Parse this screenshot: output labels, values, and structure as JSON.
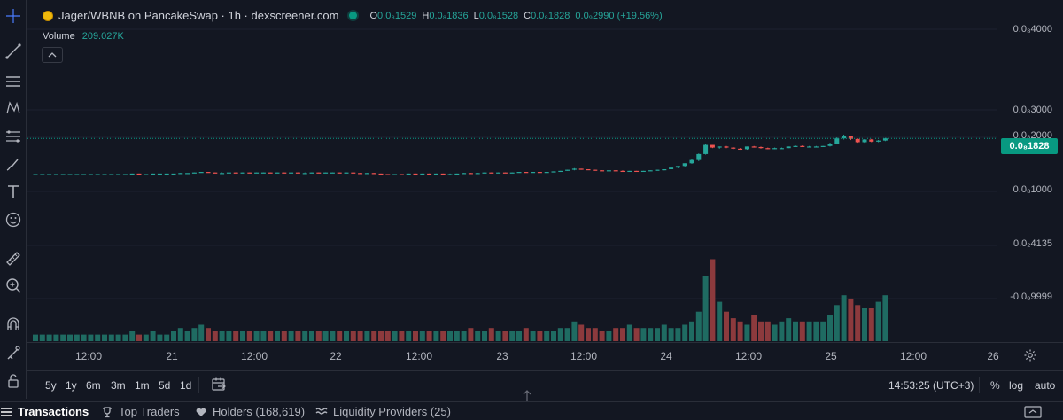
{
  "legend": {
    "title": "Jager/WBNB on PancakeSwap · 1h · dexscreener.com",
    "ohlc": [
      {
        "k": "O",
        "v": "0.0₈1529"
      },
      {
        "k": "H",
        "v": "0.0₈1836"
      },
      {
        "k": "L",
        "v": "0.0₈1528"
      },
      {
        "k": "C",
        "v": "0.0₈1828"
      }
    ],
    "change": "0.0₉2990 (+19.56%)",
    "volume_label": "Volume",
    "volume_value": "209.027K"
  },
  "price_axis": {
    "ticks": [
      {
        "label": "0.0₈4000",
        "top": 27
      },
      {
        "label": "0.0₈3000",
        "top": 118
      },
      {
        "label": "0.0₈2000",
        "top": 147
      },
      {
        "label": "0.0₈1000",
        "top": 208
      },
      {
        "label": "0.0₂4135",
        "top": 269
      },
      {
        "label": "-0.0₉9999",
        "top": 329
      }
    ],
    "current": "0.0₈1828"
  },
  "time_axis": [
    "12:00",
    "21",
    "12:00",
    "22",
    "12:00",
    "23",
    "12:00",
    "24",
    "12:00",
    "25",
    "12:00",
    "26"
  ],
  "timeframes": [
    "5y",
    "1y",
    "6m",
    "3m",
    "1m",
    "5d",
    "1d"
  ],
  "clock": "14:53:25 (UTC+3)",
  "options": [
    "%",
    "log",
    "auto"
  ],
  "tabs": [
    {
      "label": "Transactions",
      "icon": "list-icon"
    },
    {
      "label": "Top Traders",
      "icon": "trophy-icon"
    },
    {
      "label": "Holders (168,619)",
      "icon": "heart-icon"
    },
    {
      "label": "Liquidity Providers (25)",
      "icon": "waves-icon"
    }
  ],
  "colors": {
    "up": "#26a69a",
    "down": "#ef5350",
    "vol_up": "#1f6b62",
    "vol_down": "#8c3a3d",
    "price_line": "#089981"
  },
  "chart_data": {
    "type": "candlestick",
    "candles": [
      [
        1.32,
        1.32,
        1.32,
        1.32
      ],
      [
        1.32,
        1.32,
        1.32,
        1.32
      ],
      [
        1.32,
        1.32,
        1.32,
        1.32
      ],
      [
        1.32,
        1.32,
        1.32,
        1.32
      ],
      [
        1.32,
        1.32,
        1.32,
        1.32
      ],
      [
        1.32,
        1.32,
        1.32,
        1.32
      ],
      [
        1.32,
        1.32,
        1.32,
        1.32
      ],
      [
        1.32,
        1.32,
        1.32,
        1.32
      ],
      [
        1.32,
        1.32,
        1.32,
        1.32
      ],
      [
        1.32,
        1.32,
        1.32,
        1.32
      ],
      [
        1.32,
        1.32,
        1.32,
        1.32
      ],
      [
        1.32,
        1.32,
        1.32,
        1.32
      ],
      [
        1.32,
        1.32,
        1.32,
        1.32
      ],
      [
        1.32,
        1.32,
        1.32,
        1.32
      ],
      [
        1.32,
        1.33,
        1.32,
        1.33
      ],
      [
        1.33,
        1.33,
        1.32,
        1.32
      ],
      [
        1.32,
        1.32,
        1.32,
        1.32
      ],
      [
        1.32,
        1.33,
        1.32,
        1.33
      ],
      [
        1.33,
        1.33,
        1.33,
        1.33
      ],
      [
        1.33,
        1.33,
        1.32,
        1.33
      ],
      [
        1.33,
        1.33,
        1.33,
        1.33
      ],
      [
        1.33,
        1.34,
        1.33,
        1.34
      ],
      [
        1.34,
        1.34,
        1.34,
        1.34
      ],
      [
        1.34,
        1.35,
        1.34,
        1.35
      ],
      [
        1.35,
        1.36,
        1.35,
        1.36
      ],
      [
        1.36,
        1.36,
        1.35,
        1.35
      ],
      [
        1.35,
        1.35,
        1.34,
        1.34
      ],
      [
        1.34,
        1.35,
        1.34,
        1.34
      ],
      [
        1.34,
        1.35,
        1.34,
        1.35
      ],
      [
        1.35,
        1.35,
        1.34,
        1.34
      ],
      [
        1.34,
        1.35,
        1.34,
        1.35
      ],
      [
        1.35,
        1.35,
        1.34,
        1.34
      ],
      [
        1.34,
        1.35,
        1.34,
        1.35
      ],
      [
        1.35,
        1.35,
        1.34,
        1.35
      ],
      [
        1.35,
        1.35,
        1.34,
        1.34
      ],
      [
        1.34,
        1.35,
        1.34,
        1.35
      ],
      [
        1.35,
        1.35,
        1.34,
        1.34
      ],
      [
        1.34,
        1.35,
        1.34,
        1.35
      ],
      [
        1.35,
        1.35,
        1.34,
        1.34
      ],
      [
        1.34,
        1.35,
        1.34,
        1.34
      ],
      [
        1.34,
        1.35,
        1.34,
        1.35
      ],
      [
        1.35,
        1.35,
        1.34,
        1.34
      ],
      [
        1.34,
        1.35,
        1.34,
        1.35
      ],
      [
        1.35,
        1.35,
        1.34,
        1.35
      ],
      [
        1.35,
        1.35,
        1.34,
        1.34
      ],
      [
        1.34,
        1.35,
        1.34,
        1.35
      ],
      [
        1.35,
        1.35,
        1.34,
        1.34
      ],
      [
        1.34,
        1.34,
        1.33,
        1.33
      ],
      [
        1.33,
        1.34,
        1.33,
        1.34
      ],
      [
        1.34,
        1.34,
        1.33,
        1.33
      ],
      [
        1.33,
        1.33,
        1.32,
        1.32
      ],
      [
        1.32,
        1.32,
        1.31,
        1.31
      ],
      [
        1.31,
        1.32,
        1.31,
        1.32
      ],
      [
        1.32,
        1.32,
        1.31,
        1.31
      ],
      [
        1.31,
        1.33,
        1.31,
        1.33
      ],
      [
        1.33,
        1.33,
        1.32,
        1.32
      ],
      [
        1.32,
        1.33,
        1.32,
        1.33
      ],
      [
        1.33,
        1.33,
        1.32,
        1.32
      ],
      [
        1.32,
        1.33,
        1.32,
        1.33
      ],
      [
        1.33,
        1.33,
        1.32,
        1.32
      ],
      [
        1.32,
        1.33,
        1.32,
        1.32
      ],
      [
        1.32,
        1.33,
        1.32,
        1.33
      ],
      [
        1.33,
        1.34,
        1.33,
        1.34
      ],
      [
        1.34,
        1.34,
        1.33,
        1.33
      ],
      [
        1.33,
        1.34,
        1.33,
        1.34
      ],
      [
        1.34,
        1.35,
        1.34,
        1.35
      ],
      [
        1.35,
        1.35,
        1.34,
        1.34
      ],
      [
        1.34,
        1.35,
        1.34,
        1.35
      ],
      [
        1.35,
        1.35,
        1.34,
        1.34
      ],
      [
        1.34,
        1.35,
        1.34,
        1.35
      ],
      [
        1.35,
        1.36,
        1.35,
        1.36
      ],
      [
        1.36,
        1.36,
        1.35,
        1.35
      ],
      [
        1.35,
        1.36,
        1.35,
        1.36
      ],
      [
        1.36,
        1.36,
        1.35,
        1.35
      ],
      [
        1.35,
        1.36,
        1.35,
        1.36
      ],
      [
        1.36,
        1.37,
        1.36,
        1.37
      ],
      [
        1.37,
        1.38,
        1.36,
        1.38
      ],
      [
        1.38,
        1.4,
        1.38,
        1.4
      ],
      [
        1.4,
        1.43,
        1.39,
        1.42
      ],
      [
        1.42,
        1.42,
        1.4,
        1.41
      ],
      [
        1.41,
        1.41,
        1.4,
        1.4
      ],
      [
        1.4,
        1.4,
        1.39,
        1.39
      ],
      [
        1.39,
        1.39,
        1.38,
        1.38
      ],
      [
        1.38,
        1.39,
        1.38,
        1.39
      ],
      [
        1.39,
        1.39,
        1.38,
        1.38
      ],
      [
        1.38,
        1.39,
        1.37,
        1.37
      ],
      [
        1.37,
        1.38,
        1.37,
        1.38
      ],
      [
        1.38,
        1.38,
        1.37,
        1.37
      ],
      [
        1.37,
        1.38,
        1.37,
        1.38
      ],
      [
        1.38,
        1.39,
        1.38,
        1.39
      ],
      [
        1.39,
        1.4,
        1.39,
        1.4
      ],
      [
        1.4,
        1.41,
        1.39,
        1.41
      ],
      [
        1.41,
        1.44,
        1.41,
        1.44
      ],
      [
        1.44,
        1.47,
        1.43,
        1.47
      ],
      [
        1.47,
        1.52,
        1.46,
        1.52
      ],
      [
        1.52,
        1.59,
        1.51,
        1.58
      ],
      [
        1.58,
        1.7,
        1.56,
        1.69
      ],
      [
        1.69,
        1.87,
        1.68,
        1.86
      ],
      [
        1.86,
        1.86,
        1.8,
        1.81
      ],
      [
        1.81,
        1.83,
        1.79,
        1.83
      ],
      [
        1.83,
        1.84,
        1.8,
        1.81
      ],
      [
        1.81,
        1.82,
        1.78,
        1.79
      ],
      [
        1.79,
        1.8,
        1.77,
        1.78
      ],
      [
        1.78,
        1.83,
        1.77,
        1.83
      ],
      [
        1.83,
        1.84,
        1.81,
        1.82
      ],
      [
        1.82,
        1.83,
        1.79,
        1.8
      ],
      [
        1.8,
        1.81,
        1.78,
        1.79
      ],
      [
        1.79,
        1.81,
        1.78,
        1.8
      ],
      [
        1.8,
        1.81,
        1.79,
        1.8
      ],
      [
        1.8,
        1.83,
        1.8,
        1.83
      ],
      [
        1.83,
        1.85,
        1.82,
        1.84
      ],
      [
        1.84,
        1.85,
        1.82,
        1.83
      ],
      [
        1.83,
        1.84,
        1.82,
        1.83
      ],
      [
        1.83,
        1.84,
        1.82,
        1.83
      ],
      [
        1.83,
        1.84,
        1.82,
        1.84
      ],
      [
        1.84,
        1.9,
        1.83,
        1.88
      ],
      [
        1.88,
        2.0,
        1.87,
        1.98
      ],
      [
        1.98,
        2.05,
        1.96,
        2.02
      ],
      [
        2.02,
        2.03,
        1.95,
        1.97
      ],
      [
        1.97,
        1.98,
        1.9,
        1.91
      ],
      [
        1.91,
        1.97,
        1.9,
        1.96
      ],
      [
        1.96,
        1.97,
        1.91,
        1.92
      ],
      [
        1.92,
        1.95,
        1.91,
        1.94
      ],
      [
        1.94,
        1.99,
        1.93,
        1.98
      ]
    ],
    "volume": [
      2,
      2,
      2,
      2,
      2,
      2,
      2,
      2,
      2,
      2,
      2,
      2,
      2,
      2,
      3,
      2,
      2,
      3,
      2,
      2,
      3,
      4,
      3,
      4,
      5,
      4,
      3,
      3,
      3,
      3,
      3,
      3,
      3,
      3,
      3,
      3,
      3,
      3,
      3,
      3,
      3,
      3,
      3,
      3,
      3,
      3,
      3,
      3,
      3,
      3,
      3,
      3,
      3,
      3,
      3,
      3,
      3,
      3,
      3,
      3,
      3,
      3,
      3,
      4,
      3,
      3,
      4,
      3,
      3,
      3,
      3,
      4,
      3,
      3,
      3,
      3,
      4,
      4,
      6,
      5,
      4,
      4,
      3,
      3,
      4,
      4,
      5,
      4,
      4,
      4,
      4,
      5,
      4,
      4,
      5,
      6,
      9,
      20,
      25,
      12,
      9,
      7,
      6,
      5,
      8,
      6,
      6,
      5,
      6,
      7,
      6,
      6,
      6,
      6,
      6,
      8,
      11,
      14,
      13,
      11,
      10,
      10,
      12,
      14
    ]
  }
}
